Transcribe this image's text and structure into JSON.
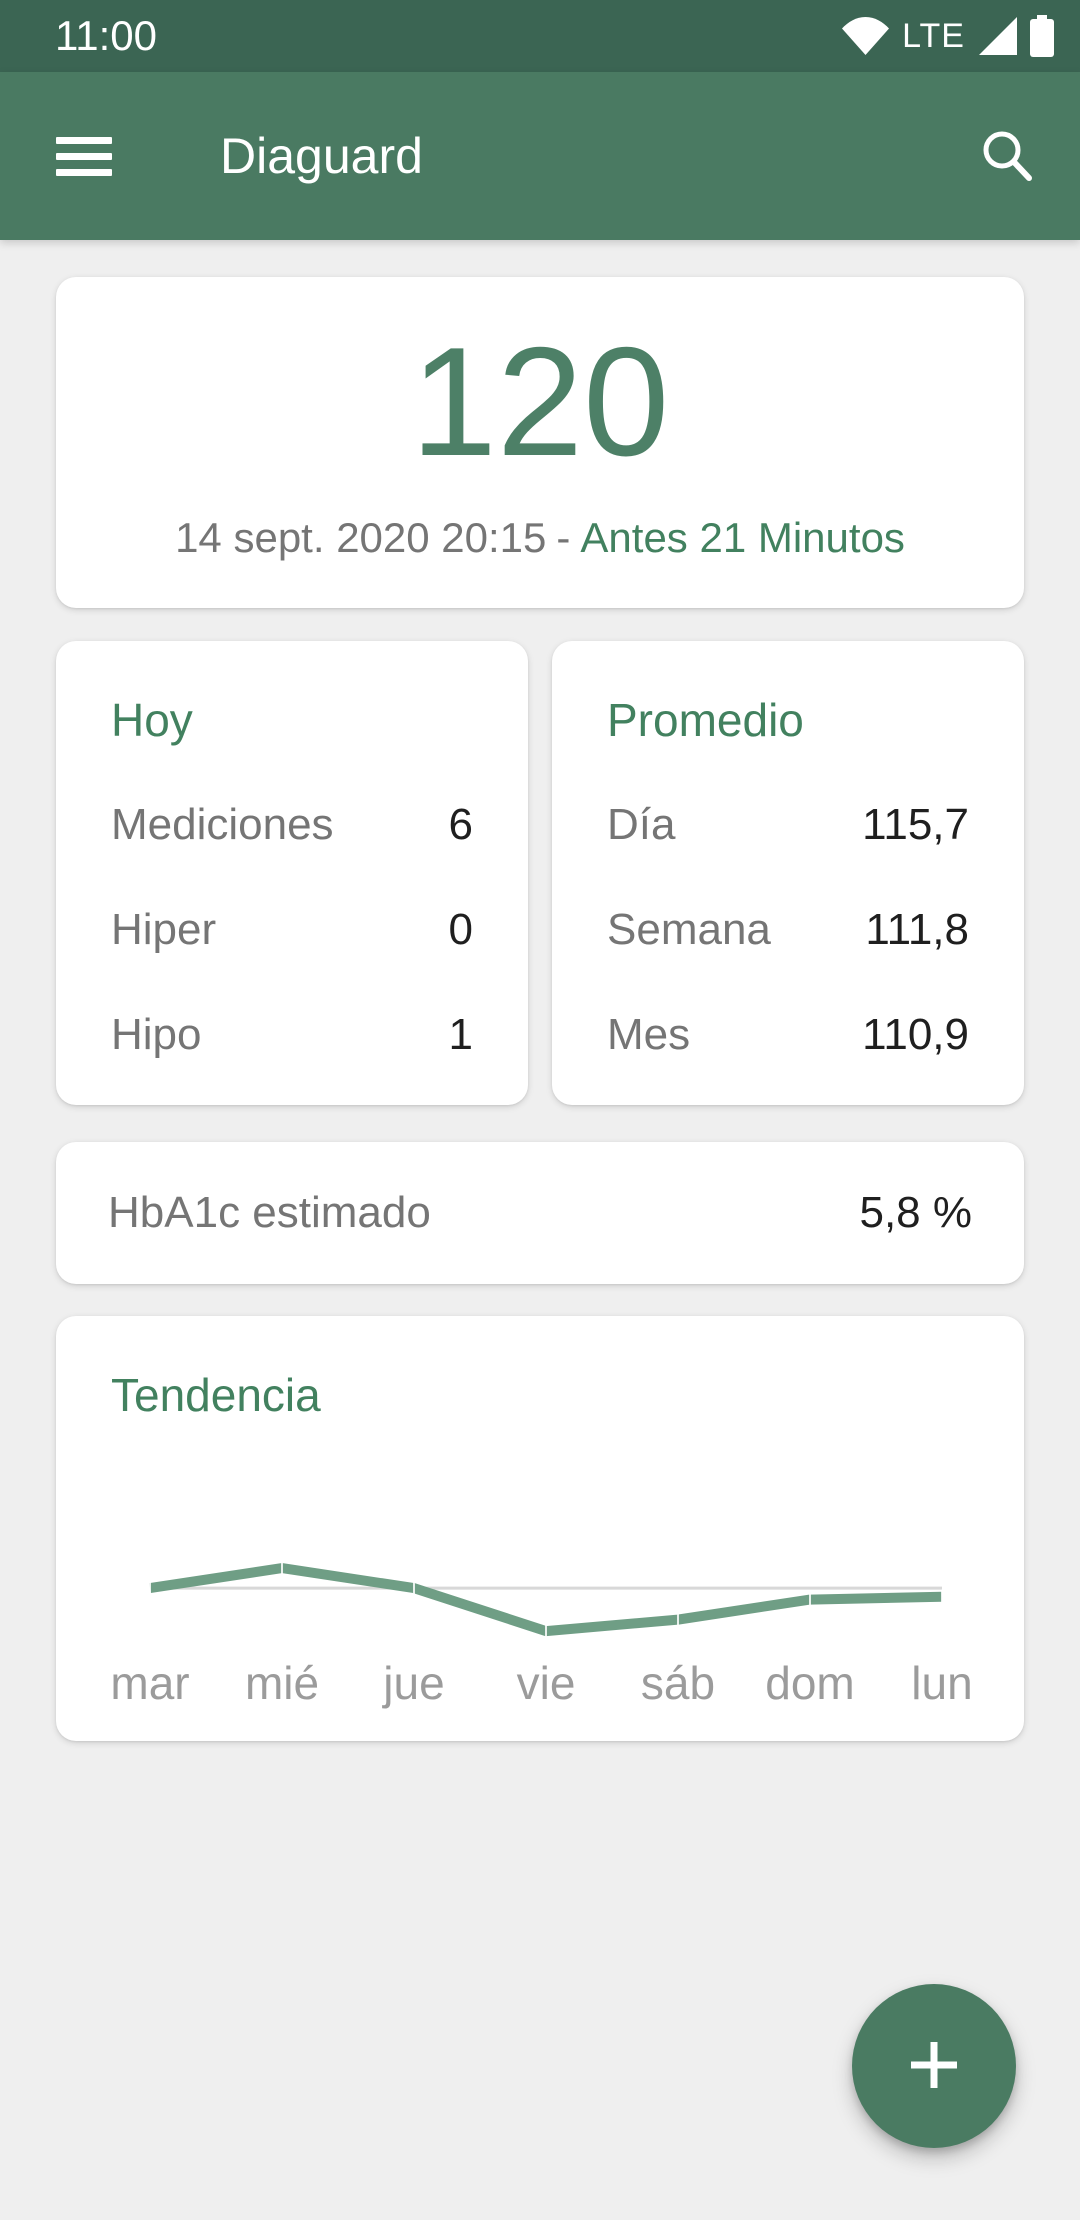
{
  "status_bar": {
    "time": "11:00",
    "network_label": "LTE",
    "icons": [
      "wifi-icon",
      "cellular-signal-icon",
      "battery-icon"
    ]
  },
  "app_bar": {
    "title": "Diaguard",
    "icons": [
      "hamburger-menu-icon",
      "search-icon"
    ]
  },
  "reading_card": {
    "value": "120",
    "timestamp": "14 sept. 2020 20:15",
    "separator": "-",
    "relative_time": "Antes 21 Minutos"
  },
  "today_card": {
    "title": "Hoy",
    "rows": [
      {
        "label": "Mediciones",
        "value": "6"
      },
      {
        "label": "Hiper",
        "value": "0"
      },
      {
        "label": "Hipo",
        "value": "1"
      }
    ]
  },
  "average_card": {
    "title": "Promedio",
    "rows": [
      {
        "label": "Día",
        "value": "115,7"
      },
      {
        "label": "Semana",
        "value": "111,8"
      },
      {
        "label": "Mes",
        "value": "110,9"
      }
    ]
  },
  "hba1c_card": {
    "label": "HbA1c estimado",
    "value": "5,8 %"
  },
  "trend_card": {
    "title": "Tendencia",
    "days": [
      "mar",
      "mié",
      "jue",
      "vie",
      "sáb",
      "dom",
      "lun"
    ]
  },
  "chart_data": {
    "type": "line",
    "title": "Tendencia",
    "categories": [
      "mar",
      "mié",
      "jue",
      "vie",
      "sáb",
      "dom",
      "lun"
    ],
    "values": [
      100,
      107,
      100,
      85,
      89,
      96,
      97
    ],
    "target_line": 100,
    "ylim": [
      77,
      115.4
    ],
    "grid": false,
    "legend": false,
    "line_color": "#6f9e85",
    "target_line_color": "#d8d8d8"
  },
  "fab": {
    "icon": "plus-icon"
  },
  "colors": {
    "status_bar": "#3b6553",
    "app_bar": "#4a7a62",
    "accent_green": "#42815f",
    "reading_green": "#4d8067",
    "fab": "#4a7b62",
    "background": "#efefef",
    "card": "#ffffff",
    "text_gray": "#757575",
    "text_dark": "#1f1f1f",
    "day_label": "#9b9b9b",
    "chart_line": "#6f9e85",
    "chart_target": "#d8d8d8"
  }
}
